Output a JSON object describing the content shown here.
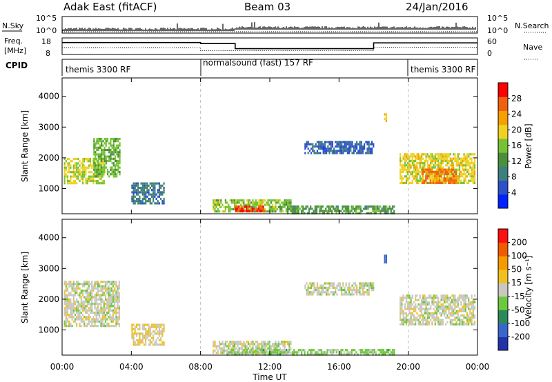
{
  "header": {
    "title": "Adak East (fitACF)",
    "beam": "Beam 03",
    "date": "24/Jan/2016"
  },
  "nsky_panel": {
    "left_label": "N.Sky",
    "right_label": "N.Search",
    "left_ticks": [
      "10^5",
      "10^0"
    ],
    "right_ticks": [
      "10^5",
      "10^0"
    ]
  },
  "freq_panel": {
    "left_label_line1": "Freq.",
    "left_label_line2": "[MHz]",
    "right_label": "Nave",
    "left_ticks": [
      18,
      8
    ],
    "right_ticks": [
      60,
      0
    ],
    "freq_segments": [
      {
        "start_h": 0,
        "end_h": 8,
        "freq_mhz": 15.2
      },
      {
        "start_h": 8,
        "end_h": 10,
        "freq_mhz": 14.6
      },
      {
        "start_h": 10,
        "end_h": 18,
        "freq_mhz": 11.5
      },
      {
        "start_h": 18,
        "end_h": 24,
        "freq_mhz": 15.0
      }
    ]
  },
  "cpid": {
    "label": "CPID",
    "segments": [
      {
        "start_h": 0,
        "end_h": 8,
        "text": "themis 3300 RF"
      },
      {
        "start_h": 8,
        "end_h": 20,
        "text": "normalsound (fast) 157 RF"
      },
      {
        "start_h": 20,
        "end_h": 24,
        "text": "themis 3300 RF"
      }
    ]
  },
  "power_panel": {
    "ylabel": "Slant Range [km]",
    "colorbar_label": "Power [dB]",
    "colorbar_ticks": [
      28,
      24,
      20,
      16,
      12,
      8,
      4
    ],
    "colorbar_colors": [
      "#0022ff",
      "#2d4fc8",
      "#3d7f7f",
      "#4b8f3d",
      "#77c232",
      "#f0d020",
      "#f5a000",
      "#f06010",
      "#ff0000"
    ]
  },
  "velocity_panel": {
    "ylabel": "Slant Range [km]",
    "colorbar_label": "Velocity [m s⁻¹]",
    "colorbar_ticks": [
      200,
      100,
      50,
      15,
      -15,
      -50,
      -100,
      -200
    ],
    "colorbar_colors": [
      "#2233aa",
      "#3a66cc",
      "#2a8a5a",
      "#6cc83c",
      "#c8c8c0",
      "#f0c020",
      "#f59a00",
      "#f05a00",
      "#ff1010"
    ]
  },
  "xaxis": {
    "label": "Time UT",
    "tick_labels": [
      "00:00",
      "04:00",
      "08:00",
      "12:00",
      "16:00",
      "20:00",
      "00:00"
    ]
  },
  "chart_data": [
    {
      "type": "heatmap",
      "title": "Power [dB]",
      "xlabel": "Time UT",
      "ylabel": "Slant Range [km]",
      "xlim_hours": [
        0,
        24
      ],
      "ylim": [
        180,
        4600
      ],
      "yticks": [
        1000,
        2000,
        3000,
        4000
      ],
      "zlim": [
        0,
        30
      ],
      "regions": [
        {
          "t0": 0.1,
          "t1": 2.4,
          "r0": 1150,
          "r1": 2000,
          "value": 17
        },
        {
          "t0": 1.8,
          "t1": 3.3,
          "r0": 1400,
          "r1": 2650,
          "value": 14
        },
        {
          "t0": 4.0,
          "t1": 5.9,
          "r0": 500,
          "r1": 1200,
          "value": 8
        },
        {
          "t0": 8.7,
          "t1": 13.2,
          "r0": 220,
          "r1": 650,
          "value": 15
        },
        {
          "t0": 10.0,
          "t1": 11.7,
          "r0": 250,
          "r1": 450,
          "value": 27
        },
        {
          "t0": 13.0,
          "t1": 19.2,
          "r0": 220,
          "r1": 450,
          "value": 12
        },
        {
          "t0": 14.0,
          "t1": 18.0,
          "r0": 2150,
          "r1": 2550,
          "value": 6
        },
        {
          "t0": 19.5,
          "t1": 23.8,
          "r0": 1150,
          "r1": 2150,
          "value": 18
        },
        {
          "t0": 20.8,
          "t1": 22.8,
          "r0": 1200,
          "r1": 1650,
          "value": 24
        },
        {
          "t0": 18.6,
          "t1": 18.75,
          "r0": 3100,
          "r1": 3450,
          "value": 21
        }
      ]
    },
    {
      "type": "heatmap",
      "title": "Velocity [m s⁻¹]",
      "xlabel": "Time UT",
      "ylabel": "Slant Range [km]",
      "xlim_hours": [
        0,
        24
      ],
      "ylim": [
        180,
        4600
      ],
      "yticks": [
        1000,
        2000,
        3000,
        4000
      ],
      "zlim": [
        -250,
        250
      ],
      "regions": [
        {
          "t0": 0.1,
          "t1": 3.3,
          "r0": 1150,
          "r1": 2600,
          "value": 0
        },
        {
          "t0": 4.0,
          "t1": 5.9,
          "r0": 500,
          "r1": 1200,
          "value": 30
        },
        {
          "t0": 8.7,
          "t1": 13.2,
          "r0": 220,
          "r1": 650,
          "value": 0
        },
        {
          "t0": 9.5,
          "t1": 19.2,
          "r0": 220,
          "r1": 380,
          "value": -40
        },
        {
          "t0": 14.0,
          "t1": 18.0,
          "r0": 2150,
          "r1": 2550,
          "value": 0
        },
        {
          "t0": 19.5,
          "t1": 23.8,
          "r0": 1150,
          "r1": 2150,
          "value": 0
        },
        {
          "t0": 18.6,
          "t1": 18.75,
          "r0": 3100,
          "r1": 3450,
          "value": -180
        }
      ]
    }
  ]
}
